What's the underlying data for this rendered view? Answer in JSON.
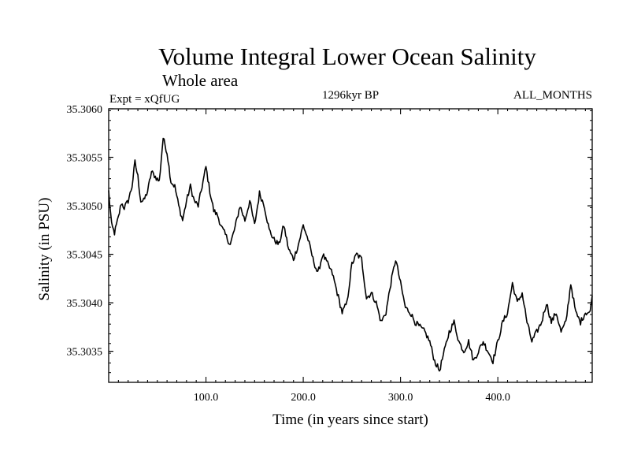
{
  "chart_data": {
    "type": "line",
    "title": "Volume Integral Lower Ocean Salinity",
    "subtitle": "Whole area",
    "experiment": "Expt = xQfUG",
    "period": "1296kyr BP",
    "months": "ALL_MONTHS",
    "xlabel": "Time (in years since start)",
    "ylabel": "Salinity (in PSU)",
    "xlim": [
      0,
      497
    ],
    "ylim": [
      35.30318,
      35.306
    ],
    "x_ticks": [
      {
        "value": 100,
        "label": "100.0"
      },
      {
        "value": 200,
        "label": "200.0"
      },
      {
        "value": 300,
        "label": "300.0"
      },
      {
        "value": 400,
        "label": "400.0"
      }
    ],
    "y_ticks": [
      {
        "value": 35.3035,
        "label": "35.3035"
      },
      {
        "value": 35.304,
        "label": "35.3040"
      },
      {
        "value": 35.3045,
        "label": "35.3045"
      },
      {
        "value": 35.305,
        "label": "35.3050"
      },
      {
        "value": 35.3055,
        "label": "35.3055"
      },
      {
        "value": 35.306,
        "label": "35.3060"
      }
    ],
    "series": [
      {
        "name": "Salinity",
        "color": "#000000",
        "x": [
          0,
          3,
          6,
          10,
          13,
          16,
          20,
          24,
          27,
          30,
          33,
          36,
          40,
          44,
          48,
          52,
          56,
          60,
          64,
          68,
          72,
          76,
          80,
          84,
          88,
          92,
          96,
          100,
          104,
          108,
          112,
          116,
          120,
          125,
          130,
          135,
          140,
          145,
          150,
          155,
          160,
          165,
          170,
          175,
          180,
          185,
          190,
          195,
          200,
          205,
          210,
          215,
          220,
          225,
          230,
          235,
          240,
          245,
          250,
          255,
          260,
          265,
          270,
          275,
          280,
          285,
          290,
          295,
          300,
          305,
          310,
          315,
          320,
          325,
          330,
          335,
          340,
          345,
          350,
          355,
          360,
          365,
          370,
          375,
          380,
          385,
          390,
          395,
          400,
          405,
          410,
          415,
          420,
          425,
          430,
          435,
          440,
          445,
          450,
          455,
          460,
          465,
          470,
          475,
          480,
          485,
          490,
          495,
          497
        ],
        "values": [
          35.30515,
          35.3048,
          35.30472,
          35.30488,
          35.30503,
          35.30498,
          35.30505,
          35.3052,
          35.30545,
          35.3053,
          35.30505,
          35.30505,
          35.30515,
          35.30535,
          35.3053,
          35.30525,
          35.3057,
          35.30555,
          35.30525,
          35.3052,
          35.305,
          35.30485,
          35.30505,
          35.3052,
          35.30505,
          35.305,
          35.3052,
          35.3054,
          35.30515,
          35.30495,
          35.3049,
          35.30478,
          35.3047,
          35.3046,
          35.30478,
          35.305,
          35.30485,
          35.30505,
          35.3048,
          35.30513,
          35.305,
          35.30475,
          35.30465,
          35.3046,
          35.3048,
          35.30455,
          35.30445,
          35.3046,
          35.3048,
          35.30465,
          35.30445,
          35.3043,
          35.3045,
          35.3044,
          35.3043,
          35.3041,
          35.3039,
          35.304,
          35.3044,
          35.3045,
          35.30445,
          35.30405,
          35.3041,
          35.304,
          35.3038,
          35.3039,
          35.3042,
          35.30445,
          35.3042,
          35.30395,
          35.3039,
          35.3038,
          35.30375,
          35.3037,
          35.3036,
          35.3034,
          35.3033,
          35.3035,
          35.3037,
          35.3038,
          35.3036,
          35.3035,
          35.3036,
          35.3034,
          35.3035,
          35.3036,
          35.3035,
          35.3034,
          35.3036,
          35.3038,
          35.3039,
          35.3042,
          35.304,
          35.3041,
          35.3038,
          35.3036,
          35.3037,
          35.3038,
          35.304,
          35.3038,
          35.3039,
          35.3037,
          35.3038,
          35.3042,
          35.3039,
          35.3038,
          35.3039,
          35.3039,
          35.3041
        ]
      }
    ]
  }
}
